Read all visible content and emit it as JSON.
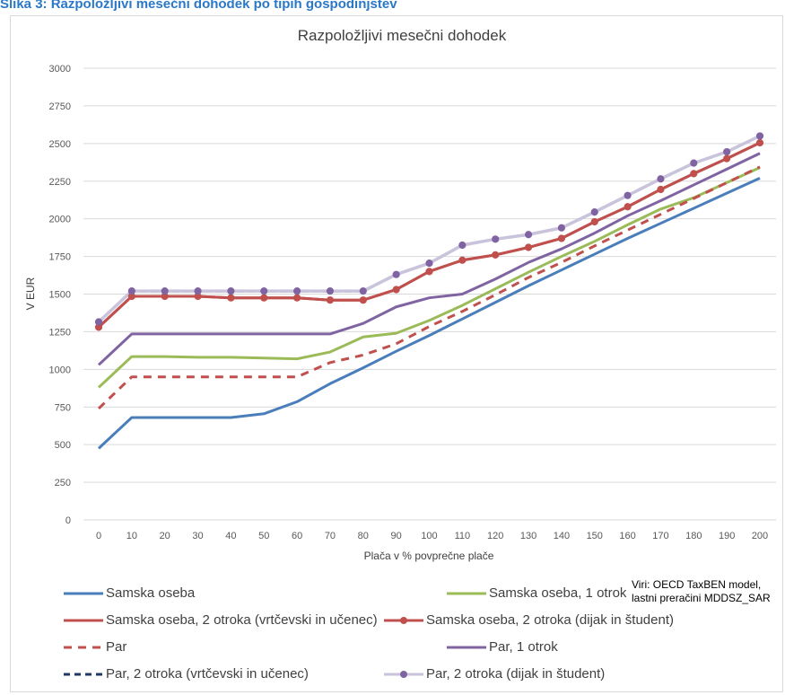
{
  "header_text": "Slika 3: Razpoložljivi mesečni dohodek po tipih gospodinjstev",
  "source_note": "Viri: OECD TaxBEN model, lastni preračini MDDSZ_SAR",
  "chart_data": {
    "type": "line",
    "title": "Razpoložljivi mesečni dohodek",
    "xlabel": "Plača v % povprečne plače",
    "ylabel": "V EUR",
    "ylim": [
      0,
      3000
    ],
    "yticks": [
      0,
      250,
      500,
      750,
      1000,
      1250,
      1500,
      1750,
      2000,
      2250,
      2500,
      2750,
      3000
    ],
    "x": [
      0,
      10,
      20,
      30,
      40,
      50,
      60,
      70,
      80,
      90,
      100,
      110,
      120,
      130,
      140,
      150,
      160,
      170,
      180,
      190,
      200
    ],
    "grid": "horizontal",
    "legend_position": "bottom",
    "series": [
      {
        "name": "Samska oseba",
        "color": "#4a7ebb",
        "dash": "solid",
        "marker": false,
        "values": [
          475,
          680,
          680,
          680,
          680,
          705,
          785,
          905,
          1010,
          1120,
          1225,
          1335,
          1445,
          1555,
          1660,
          1765,
          1870,
          1970,
          2070,
          2170,
          2270
        ]
      },
      {
        "name": "Samska oseba, 1 otrok",
        "color": "#9bbb59",
        "dash": "solid",
        "marker": false,
        "values": [
          880,
          1085,
          1085,
          1080,
          1080,
          1075,
          1070,
          1115,
          1215,
          1240,
          1325,
          1425,
          1535,
          1645,
          1750,
          1850,
          1960,
          2065,
          2140,
          2240,
          2340
        ]
      },
      {
        "name": "Samska oseba, 2 otroka (vrtčevski in učenec)",
        "color": "#c0504d",
        "dash": "solid",
        "marker": false,
        "values": [
          1280,
          1485,
          1485,
          1485,
          1475,
          1475,
          1475,
          1460,
          1460,
          1530,
          1650,
          1725,
          1760,
          1810,
          1870,
          1980,
          2080,
          2195,
          2300,
          2400,
          2505
        ]
      },
      {
        "name": "Samska oseba, 2 otroka (dijak in študent)",
        "color": "#c0504d",
        "dash": "solid",
        "marker": true,
        "values": [
          1280,
          1485,
          1485,
          1485,
          1475,
          1475,
          1475,
          1460,
          1460,
          1530,
          1650,
          1725,
          1760,
          1810,
          1870,
          1980,
          2080,
          2195,
          2300,
          2400,
          2505
        ]
      },
      {
        "name": "Par",
        "color": "#c0504d",
        "dash": "dashed",
        "marker": false,
        "values": [
          740,
          950,
          950,
          950,
          950,
          950,
          950,
          1045,
          1095,
          1170,
          1285,
          1385,
          1495,
          1610,
          1710,
          1820,
          1925,
          2030,
          2135,
          2240,
          2345
        ]
      },
      {
        "name": "Par, 1 otrok",
        "color": "#8064a2",
        "dash": "solid",
        "marker": false,
        "values": [
          1030,
          1235,
          1235,
          1235,
          1235,
          1235,
          1235,
          1235,
          1305,
          1415,
          1475,
          1500,
          1600,
          1710,
          1800,
          1905,
          2020,
          2120,
          2225,
          2330,
          2435
        ]
      },
      {
        "name": "Par, 2 otroka (vrtčevski in učenec)",
        "color": "#1f3864",
        "dash": "dashed",
        "marker": false,
        "values": [
          1315,
          1520,
          1520,
          1520,
          1520,
          1520,
          1520,
          1520,
          1520,
          1630,
          1705,
          1825,
          1865,
          1895,
          1940,
          2045,
          2155,
          2265,
          2370,
          2445,
          2550
        ]
      },
      {
        "name": "Par, 2 otroka (dijak in študent)",
        "color": "#c9c3db",
        "dash": "solid",
        "marker": true,
        "marker_color": "#8064a2",
        "values": [
          1315,
          1520,
          1520,
          1520,
          1520,
          1520,
          1520,
          1520,
          1520,
          1630,
          1705,
          1825,
          1865,
          1895,
          1940,
          2045,
          2155,
          2265,
          2370,
          2445,
          2550
        ]
      }
    ]
  }
}
